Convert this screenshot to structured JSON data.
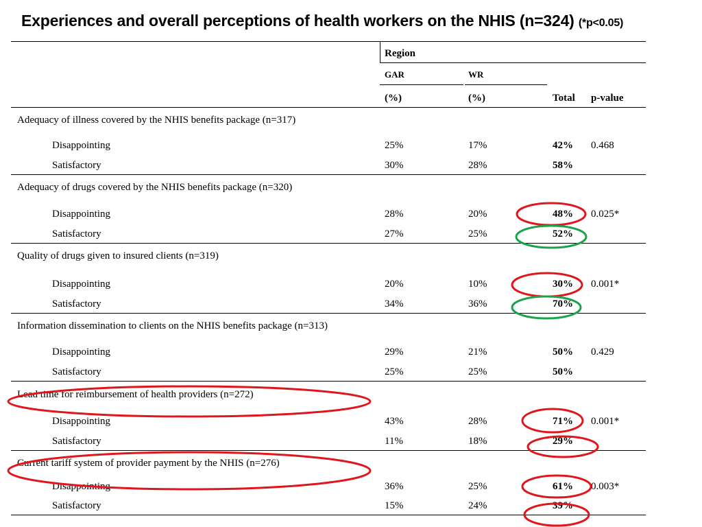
{
  "title": {
    "main": "Experiences and overall perceptions of health workers on the NHIS (n=324)",
    "significance": "(*p<0.05)"
  },
  "table": {
    "header": {
      "region": "Region",
      "gar": "GAR",
      "wr": "WR",
      "gar_unit": "(%)",
      "wr_unit": "(%)",
      "total": "Total",
      "pvalue": "p-value"
    },
    "sections": [
      {
        "title": "Adequacy of illness covered by the NHIS benefits package (n=317)",
        "rows": [
          {
            "label": "Disappointing",
            "gar": "25%",
            "wr": "17%",
            "total": "42%",
            "p": "0.468"
          },
          {
            "label": "Satisfactory",
            "gar": "30%",
            "wr": "28%",
            "total": "58%",
            "p": ""
          }
        ]
      },
      {
        "title": "Adequacy of drugs covered by the NHIS benefits package (n=320)",
        "rows": [
          {
            "label": "Disappointing",
            "gar": "28%",
            "wr": "20%",
            "total": "48%",
            "p": "0.025*"
          },
          {
            "label": "Satisfactory",
            "gar": "27%",
            "wr": "25%",
            "total": "52%",
            "p": ""
          }
        ]
      },
      {
        "title": "Quality of drugs given to insured clients (n=319)",
        "rows": [
          {
            "label": "Disappointing",
            "gar": "20%",
            "wr": "10%",
            "total": "30%",
            "p": "0.001*"
          },
          {
            "label": "Satisfactory",
            "gar": "34%",
            "wr": "36%",
            "total": "70%",
            "p": ""
          }
        ]
      },
      {
        "title": "Information dissemination to clients on the NHIS benefits package (n=313)",
        "rows": [
          {
            "label": "Disappointing",
            "gar": "29%",
            "wr": "21%",
            "total": "50%",
            "p": "0.429"
          },
          {
            "label": "Satisfactory",
            "gar": "25%",
            "wr": "25%",
            "total": "50%",
            "p": ""
          }
        ]
      },
      {
        "title": "Lead time for reimbursement of health providers (n=272)",
        "rows": [
          {
            "label": "Disappointing",
            "gar": "43%",
            "wr": "28%",
            "total": "71%",
            "p": "0.001*"
          },
          {
            "label": "Satisfactory",
            "gar": "11%",
            "wr": "18%",
            "total": "29%",
            "p": ""
          }
        ]
      },
      {
        "title": "Current tariff  system of provider payment by the NHIS (n=276)",
        "rows": [
          {
            "label": "Disappointing",
            "gar": "36%",
            "wr": "25%",
            "total": "61%",
            "p": "0.003*"
          },
          {
            "label": "Satisfactory",
            "gar": "15%",
            "wr": "24%",
            "total": "39%",
            "p": ""
          }
        ]
      }
    ]
  },
  "annotation_colors": {
    "negative": "#e0161d",
    "positive": "#1aa34a"
  }
}
